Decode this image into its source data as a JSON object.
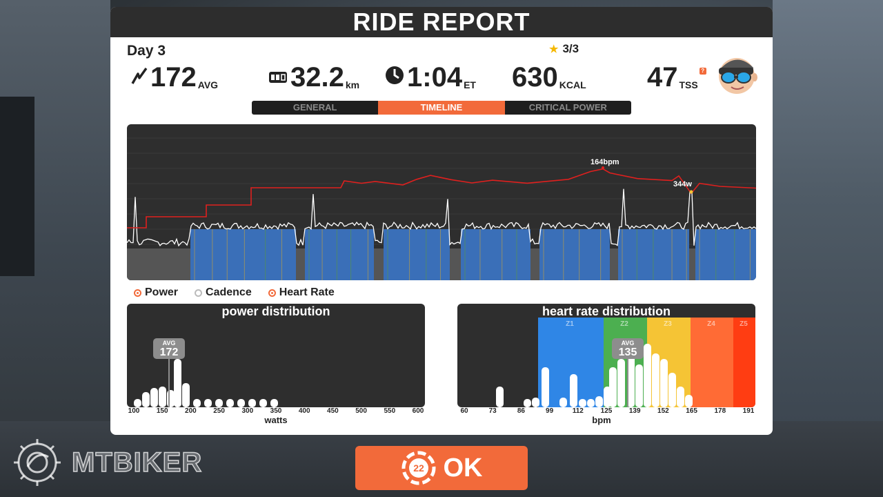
{
  "title": "RIDE REPORT",
  "day_label": "Day 3",
  "stars": {
    "icon": "star-icon",
    "value": "3/3"
  },
  "stats": [
    {
      "icon": "power-bolt-icon",
      "value": "172",
      "unit": "AVG"
    },
    {
      "icon": "odometer-icon",
      "value": "32.2",
      "unit": "km"
    },
    {
      "icon": "clock-icon",
      "value": "1:04",
      "unit": "ET"
    },
    {
      "icon": "",
      "value": "630",
      "unit": "KCAL"
    },
    {
      "icon": "",
      "value": "47",
      "unit": "TSS"
    }
  ],
  "tss_badge": "?",
  "tabs": [
    {
      "label": "GENERAL",
      "active": false
    },
    {
      "label": "TIMELINE",
      "active": true
    },
    {
      "label": "CRITICAL POWER",
      "active": false
    }
  ],
  "timeline": {
    "hr_peak_label": "164bpm",
    "power_peak_label": "344w"
  },
  "legend": [
    {
      "label": "Power",
      "checked": true
    },
    {
      "label": "Cadence",
      "checked": false
    },
    {
      "label": "Heart Rate",
      "checked": true
    }
  ],
  "power_distribution": {
    "title": "power distribution",
    "avg_label": "AVG",
    "avg_value": "172",
    "x_ticks": [
      "100",
      "150",
      "200",
      "250",
      "300",
      "350",
      "400",
      "450",
      "500",
      "550",
      "600"
    ],
    "x_label": "watts"
  },
  "hr_distribution": {
    "title": "heart rate distribution",
    "avg_label": "AVG",
    "avg_value": "135",
    "zones": [
      "Z1",
      "Z2",
      "Z3",
      "Z4",
      "Z5"
    ],
    "x_ticks": [
      "60",
      "73",
      "86",
      "99",
      "112",
      "125",
      "139",
      "152",
      "165",
      "178",
      "191"
    ],
    "x_label": "bpm"
  },
  "ok_button": {
    "label": "OK",
    "badge": "22"
  },
  "brand": "MTBIKER",
  "colors": {
    "accent": "#f26a3a",
    "power_area": "#3a6fb8",
    "power_area_gray": "#555555",
    "hr_line": "#e0201e",
    "zone1": "#2f86e6",
    "zone2": "#4caf50",
    "zone3": "#f5c435",
    "zone4": "#ff6b35",
    "zone5": "#ff3d12"
  }
}
